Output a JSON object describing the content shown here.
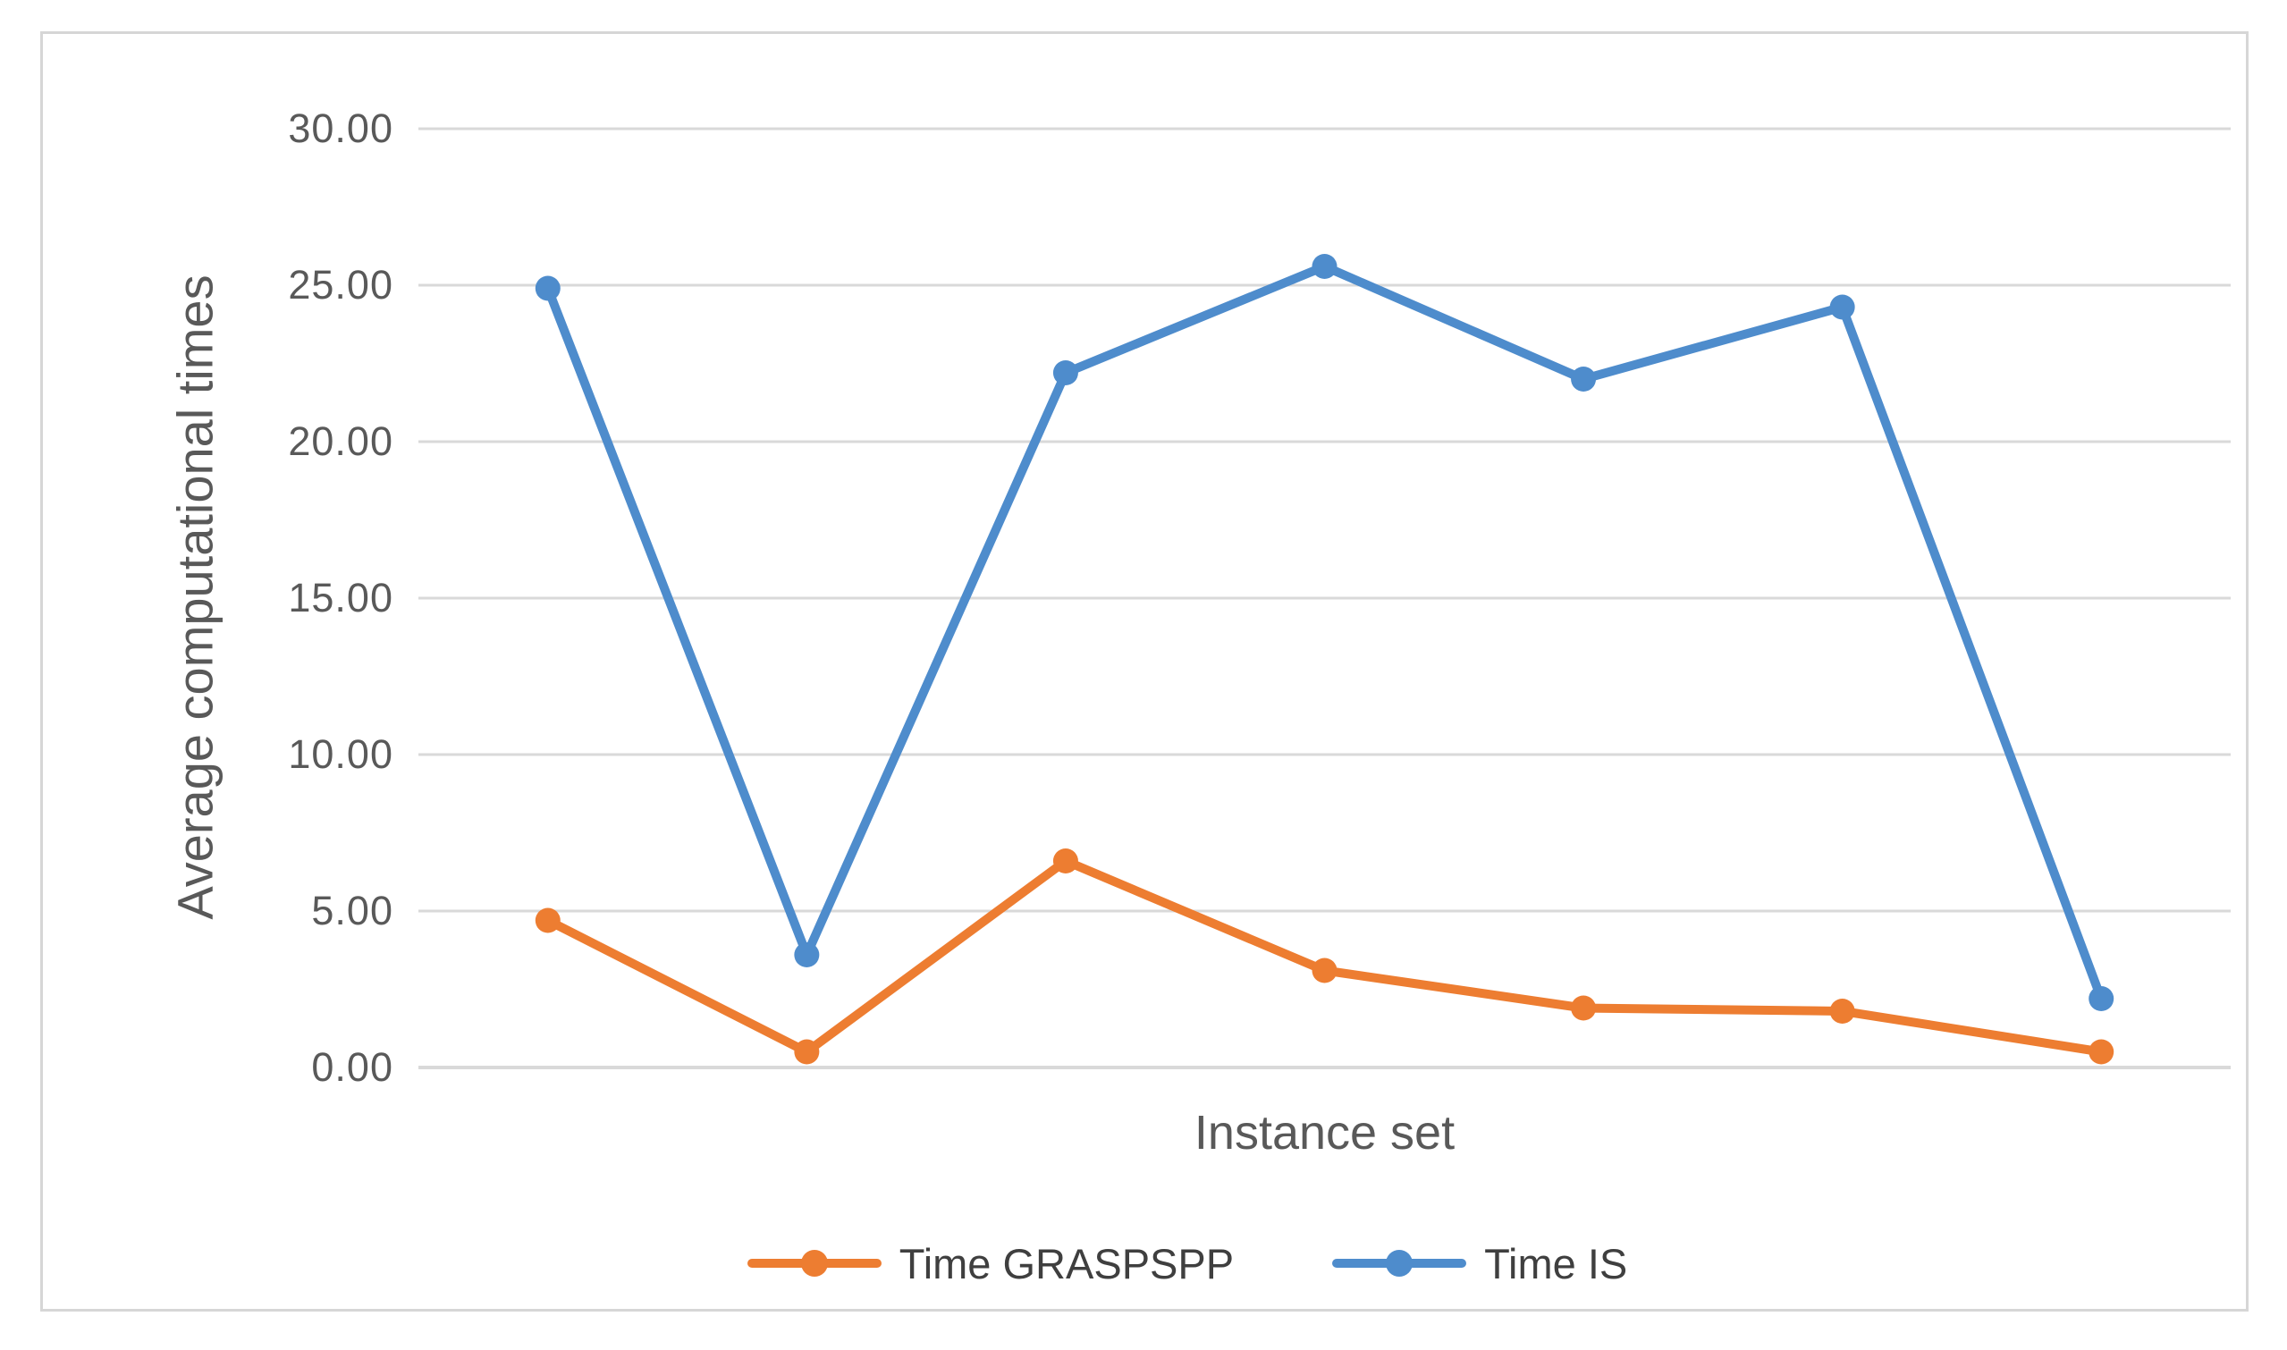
{
  "figure": {
    "background_color": "#ffffff",
    "border_color": "#d6d6d6"
  },
  "chart_data": {
    "type": "line",
    "title": "",
    "xlabel": "Instance set",
    "ylabel": "Average computational times",
    "x": [
      1,
      2,
      3,
      4,
      5,
      6,
      7
    ],
    "x_tick_labels_visible": false,
    "series": [
      {
        "name": "Time GRASPSPP",
        "color": "#ED7D31",
        "values": [
          4.7,
          0.5,
          6.6,
          3.1,
          1.9,
          1.8,
          0.5
        ]
      },
      {
        "name": "Time IS",
        "color": "#4E8CCC",
        "values": [
          24.9,
          3.6,
          22.2,
          25.6,
          22.0,
          24.3,
          2.2
        ]
      }
    ],
    "ylim": [
      0,
      30
    ],
    "y_tick_step": 5,
    "y_tick_labels": [
      "30.00",
      "25.00",
      "20.00",
      "15.00",
      "10.00",
      "5.00",
      "0.00"
    ],
    "grid": true,
    "gridline_color": "#d9d9d9",
    "axis_text_color": "#595959",
    "legend_position": "bottom-center",
    "marker": "circle"
  }
}
